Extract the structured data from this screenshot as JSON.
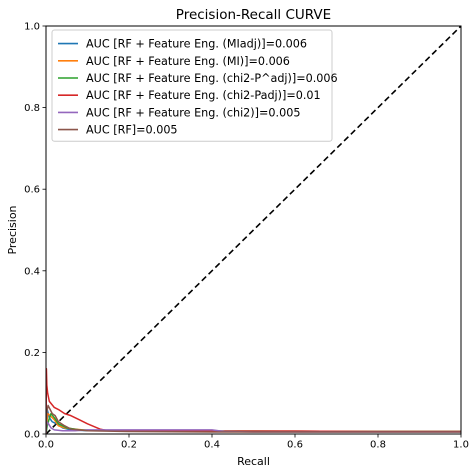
{
  "chart_data": {
    "type": "line",
    "title": "Precision-Recall CURVE",
    "xlabel": "Recall",
    "ylabel": "Precision",
    "xlim": [
      0.0,
      1.0
    ],
    "ylim": [
      0.0,
      1.0
    ],
    "x_ticks": [
      0.0,
      0.2,
      0.4,
      0.6,
      0.8,
      1.0
    ],
    "y_ticks": [
      0.0,
      0.2,
      0.4,
      0.6,
      0.8,
      1.0
    ],
    "x_tick_labels": [
      "0.0",
      "0.2",
      "0.4",
      "0.6",
      "0.8",
      "1.0"
    ],
    "y_tick_labels": [
      "0.0",
      "0.2",
      "0.4",
      "0.6",
      "0.8",
      "1.0"
    ],
    "grid": false,
    "legend_position": "top-left",
    "series": [
      {
        "name": "AUC [RF + Feature Eng. (MIadj)]=0.006",
        "color": "#1f77b4",
        "x": [
          0.0,
          0.003,
          0.008,
          0.015,
          0.025,
          0.04,
          0.06,
          0.1,
          0.2,
          0.4,
          0.6,
          0.8,
          1.0
        ],
        "y": [
          0.0,
          0.06,
          0.04,
          0.03,
          0.025,
          0.015,
          0.01,
          0.008,
          0.008,
          0.007,
          0.007,
          0.006,
          0.006
        ]
      },
      {
        "name": "AUC [RF + Feature Eng. (MI)]=0.006",
        "color": "#ff7f0e",
        "x": [
          0.0,
          0.004,
          0.01,
          0.02,
          0.03,
          0.045,
          0.07,
          0.1,
          0.2,
          0.4,
          0.6,
          0.8,
          1.0
        ],
        "y": [
          0.0,
          0.05,
          0.045,
          0.035,
          0.02,
          0.015,
          0.012,
          0.009,
          0.008,
          0.007,
          0.007,
          0.006,
          0.006
        ]
      },
      {
        "name": "AUC [RF + Feature Eng. (chi2-P^adj)]=0.006",
        "color": "#2ca02c",
        "x": [
          0.0,
          0.003,
          0.007,
          0.012,
          0.02,
          0.03,
          0.05,
          0.08,
          0.15,
          0.3,
          0.5,
          0.7,
          0.9,
          1.0
        ],
        "y": [
          0.0,
          0.02,
          0.035,
          0.05,
          0.04,
          0.025,
          0.015,
          0.01,
          0.008,
          0.007,
          0.007,
          0.006,
          0.006,
          0.006
        ]
      },
      {
        "name": "AUC [RF + Feature Eng. (chi2-Padj)]=0.01",
        "color": "#d62728",
        "x": [
          0.0,
          0.001,
          0.002,
          0.004,
          0.008,
          0.012,
          0.02,
          0.03,
          0.045,
          0.06,
          0.08,
          0.1,
          0.13,
          0.15,
          0.2,
          0.3,
          0.4,
          0.5,
          0.6,
          0.8,
          1.0
        ],
        "y": [
          0.0,
          0.16,
          0.12,
          0.1,
          0.08,
          0.075,
          0.065,
          0.06,
          0.05,
          0.045,
          0.035,
          0.025,
          0.012,
          0.008,
          0.008,
          0.008,
          0.007,
          0.007,
          0.007,
          0.006,
          0.006
        ]
      },
      {
        "name": "AUC [RF + Feature Eng. (chi2)]=0.005",
        "color": "#9467bd",
        "x": [
          0.0,
          0.002,
          0.006,
          0.012,
          0.02,
          0.04,
          0.07,
          0.1,
          0.2,
          0.4,
          0.43,
          0.5,
          0.6,
          0.8,
          1.0
        ],
        "y": [
          0.0,
          0.03,
          0.025,
          0.015,
          0.01,
          0.008,
          0.008,
          0.01,
          0.01,
          0.01,
          0.006,
          0.005,
          0.005,
          0.005,
          0.005
        ]
      },
      {
        "name": "AUC [RF]=0.005",
        "color": "#8c564b",
        "x": [
          0.0,
          0.002,
          0.005,
          0.01,
          0.015,
          0.022,
          0.03,
          0.045,
          0.06,
          0.1,
          0.2,
          0.4,
          0.6,
          0.8,
          1.0
        ],
        "y": [
          0.0,
          0.055,
          0.07,
          0.06,
          0.05,
          0.045,
          0.03,
          0.02,
          0.012,
          0.008,
          0.006,
          0.005,
          0.005,
          0.005,
          0.005
        ]
      }
    ],
    "reference_line": {
      "style": "dashed",
      "color": "#000000",
      "x": [
        0.0,
        1.0
      ],
      "y": [
        0.0,
        1.0
      ]
    }
  }
}
